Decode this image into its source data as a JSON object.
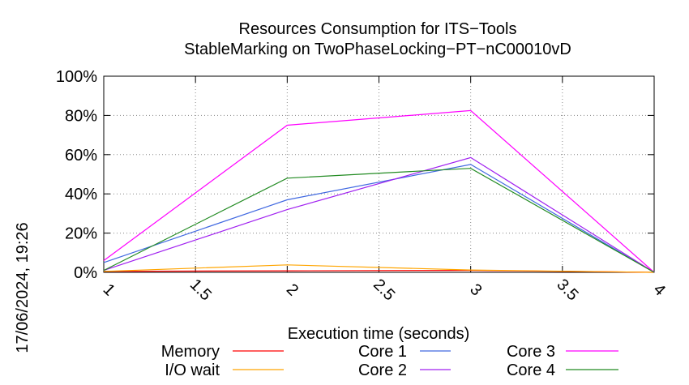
{
  "chart_data": {
    "type": "line",
    "title": "Resources Consumption for ITS−Tools",
    "subtitle": "StableMarking on TwoPhaseLocking−PT−nC00010vD",
    "xlabel": "Execution time (seconds)",
    "ylabel": "",
    "timestamp": "17/06/2024, 19:26",
    "xlim": [
      1,
      4
    ],
    "ylim": [
      0,
      100
    ],
    "x_ticks": [
      1,
      1.5,
      2,
      2.5,
      3,
      3.5,
      4
    ],
    "x_tick_labels": [
      "1",
      "1.5",
      "2",
      "2.5",
      "3",
      "3.5",
      "4"
    ],
    "y_ticks": [
      0,
      20,
      40,
      60,
      80,
      100
    ],
    "y_tick_labels": [
      "0%",
      "20%",
      "40%",
      "60%",
      "80%",
      "100%"
    ],
    "grid": true,
    "legend_position": "bottom",
    "x": [
      1,
      2,
      3,
      4
    ],
    "series": [
      {
        "name": "Memory",
        "color": "#ff0000",
        "values": [
          0.5,
          0.8,
          1.0,
          0
        ]
      },
      {
        "name": "I/O wait",
        "color": "#ffa500",
        "values": [
          0.5,
          3.8,
          1.2,
          0
        ]
      },
      {
        "name": "Core 1",
        "color": "#4169e1",
        "values": [
          5,
          37,
          55,
          0
        ]
      },
      {
        "name": "Core 2",
        "color": "#a020f0",
        "values": [
          1,
          32,
          58.5,
          0
        ]
      },
      {
        "name": "Core 3",
        "color": "#ff00ff",
        "values": [
          6,
          75,
          82.5,
          0
        ]
      },
      {
        "name": "Core 4",
        "color": "#228b22",
        "values": [
          1,
          48,
          53,
          0
        ]
      }
    ]
  }
}
